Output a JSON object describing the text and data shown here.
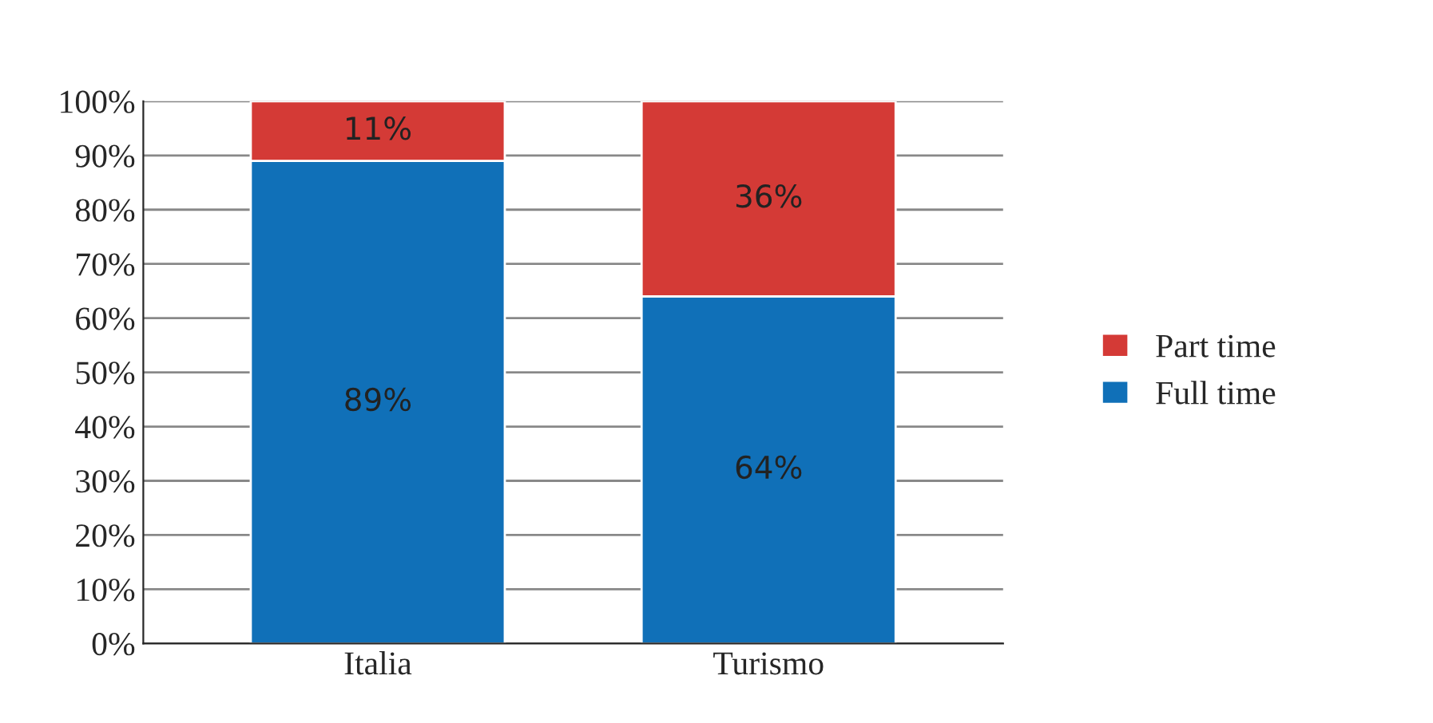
{
  "chart_data": {
    "type": "bar",
    "stacked": true,
    "categories": [
      "Italia",
      "Turismo"
    ],
    "series": [
      {
        "name": "Full time",
        "color": "#1070b8",
        "values": [
          89,
          64
        ],
        "value_labels": [
          "89%",
          "64%"
        ]
      },
      {
        "name": "Part time",
        "color": "#d43a36",
        "values": [
          11,
          36
        ],
        "value_labels": [
          "11%",
          "36%"
        ]
      }
    ],
    "ylim": [
      0,
      100
    ],
    "yticks": [
      {
        "value": 0,
        "label": "0%"
      },
      {
        "value": 10,
        "label": "10%"
      },
      {
        "value": 20,
        "label": "20%"
      },
      {
        "value": 30,
        "label": "30%"
      },
      {
        "value": 40,
        "label": "40%"
      },
      {
        "value": 50,
        "label": "50%"
      },
      {
        "value": 60,
        "label": "60%"
      },
      {
        "value": 70,
        "label": "70%"
      },
      {
        "value": 80,
        "label": "80%"
      },
      {
        "value": 90,
        "label": "90%"
      },
      {
        "value": 100,
        "label": "100%"
      }
    ],
    "grid": "y",
    "legend": "right"
  }
}
